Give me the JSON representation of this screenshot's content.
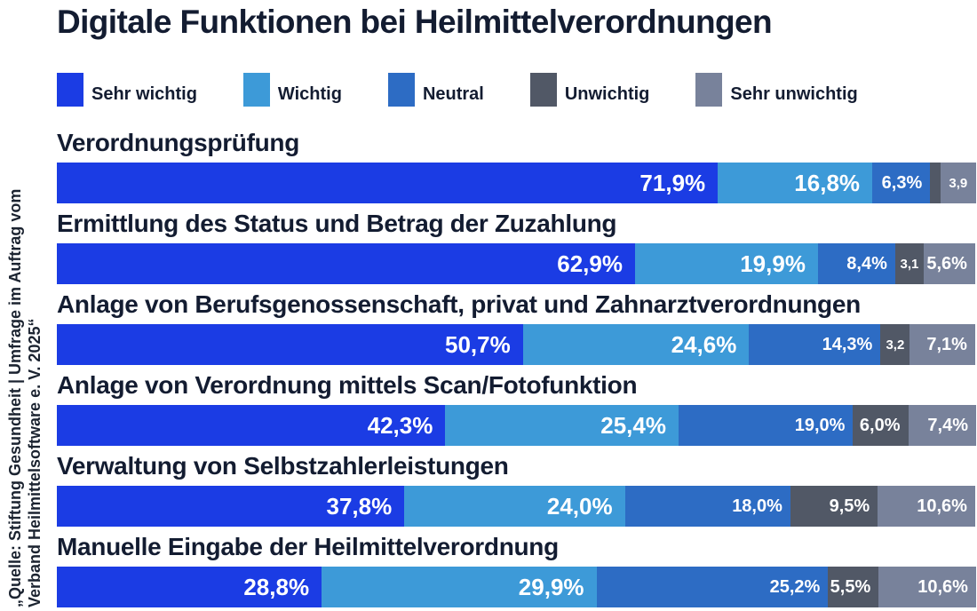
{
  "title": "Digitale Funktionen bei Heilmittelverordnungen",
  "source": {
    "line1": "„Quelle: Stiftung Gesundheit | Umfrage im Auftrag vom",
    "line2": "Verband Heilmittelsoftware e. V. 2025“"
  },
  "legend": {
    "items": [
      {
        "label": "Sehr wichtig",
        "color": "#1b3ce4"
      },
      {
        "label": "Wichtig",
        "color": "#3d9ad8"
      },
      {
        "label": "Neutral",
        "color": "#2d6cc4"
      },
      {
        "label": "Unwichtig",
        "color": "#515866"
      },
      {
        "label": "Sehr unwichtig",
        "color": "#78829b"
      }
    ]
  },
  "chart_data": {
    "type": "bar",
    "stacked": true,
    "orientation": "horizontal",
    "unit": "%",
    "xlim": [
      0,
      100
    ],
    "legend_position": "top",
    "title": "Digitale Funktionen bei Heilmittelverordnungen",
    "series_names": [
      "Sehr wichtig",
      "Wichtig",
      "Neutral",
      "Unwichtig",
      "Sehr unwichtig"
    ],
    "categories": [
      "Verordnungsprüfung",
      "Ermittlung des Status und Betrag der Zuzahlung",
      "Anlage von Berufsgenossenschaft, privat und Zahnarztverordnungen",
      "Anlage von Verordnung mittels Scan/Fotofunktion",
      "Verwaltung von Selbstzahlerleistungen",
      "Manuelle Eingabe der Heilmittelverordnung"
    ],
    "series": [
      {
        "name": "Sehr wichtig",
        "values": [
          71.9,
          62.9,
          50.7,
          42.3,
          37.8,
          28.8
        ]
      },
      {
        "name": "Wichtig",
        "values": [
          16.8,
          19.9,
          24.6,
          25.4,
          24.0,
          29.9
        ]
      },
      {
        "name": "Neutral",
        "values": [
          6.3,
          8.4,
          14.3,
          19.0,
          18.0,
          25.2
        ]
      },
      {
        "name": "Unwichtig",
        "values": [
          1.1,
          3.1,
          3.2,
          6.0,
          9.5,
          5.5
        ]
      },
      {
        "name": "Sehr unwichtig",
        "values": [
          3.9,
          5.6,
          7.1,
          7.4,
          10.6,
          10.6
        ]
      }
    ],
    "segment_display_labels": [
      [
        "71,9%",
        "16,8%",
        "6,3%",
        "",
        "3,9"
      ],
      [
        "62,9%",
        "19,9%",
        "8,4%",
        "3,1",
        "5,6%"
      ],
      [
        "50,7%",
        "24,6%",
        "14,3%",
        "3,2",
        "7,1%"
      ],
      [
        "42,3%",
        "25,4%",
        "19,0%",
        "6,0%",
        "7,4%"
      ],
      [
        "37,8%",
        "24,0%",
        "18,0%",
        "9,5%",
        "10,6%"
      ],
      [
        "28,8%",
        "29,9%",
        "25,2%",
        "5,5%",
        "10,6%"
      ]
    ]
  }
}
